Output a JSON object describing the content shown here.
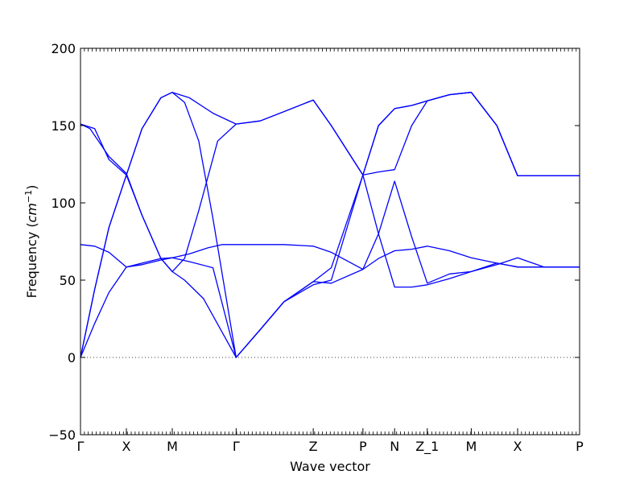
{
  "chart_data": {
    "type": "line",
    "xlabel": "Wave vector",
    "ylabel_text": "Frequency (",
    "ylabel_unit": "cm",
    "ylabel_exp": "−1",
    "ylabel_close": ")",
    "ylim": [
      -50,
      200
    ],
    "yticks": [
      -50,
      0,
      50,
      100,
      150,
      200
    ],
    "ytick_labels": [
      "−50",
      "0",
      "50",
      "100",
      "150",
      "200"
    ],
    "xlim": [
      0,
      10.55
    ],
    "xticks": [
      0,
      0.97,
      1.94,
      3.29,
      4.92,
      5.97,
      6.64,
      7.33,
      8.26,
      9.24,
      10.55
    ],
    "xtick_labels": [
      "Γ",
      "X",
      "M",
      "Γ",
      "Z",
      "P",
      "N",
      "Z_1",
      "M",
      "X",
      "P"
    ],
    "zero_line": true,
    "line_color": "#0000ff",
    "series": [
      {
        "x": [
          0,
          0.3,
          0.6,
          0.97,
          1.3,
          1.7,
          1.94,
          2.3,
          2.7,
          3.0,
          3.29,
          3.8,
          4.3,
          4.92,
          5.3,
          5.97,
          6.3,
          6.64,
          7.0,
          7.33,
          7.8,
          8.26,
          8.8,
          9.24,
          9.8,
          10.55
        ],
        "y": [
          73,
          72,
          68,
          58.5,
          61,
          64,
          64.5,
          67,
          71,
          73,
          73,
          73,
          73,
          72,
          68,
          57,
          64,
          69,
          70,
          72,
          69,
          64.5,
          61,
          58.5,
          58.5,
          58.5
        ]
      },
      {
        "x": [
          0,
          0.3,
          0.6,
          0.97,
          1.3,
          1.7,
          1.94,
          2.3,
          2.8,
          3.29,
          3.8,
          4.3,
          4.92,
          5.3,
          5.97,
          6.3,
          6.64,
          7.0,
          7.33,
          7.8,
          8.26,
          8.8,
          9.24,
          9.8,
          10.55
        ],
        "y": [
          0,
          22,
          42,
          58.5,
          60,
          63,
          64.5,
          62,
          58,
          0,
          18,
          36,
          49,
          58,
          118,
          150,
          161,
          163,
          166,
          170,
          171.5,
          150,
          117.5,
          117.5,
          117.5
        ]
      },
      {
        "x": [
          0,
          0.3,
          0.6,
          0.97,
          1.3,
          1.7,
          1.94,
          2.2,
          2.5,
          2.8,
          3.29,
          3.8,
          4.3,
          4.92,
          5.3,
          5.97,
          6.3,
          6.64,
          7.0,
          7.33,
          7.8,
          8.26,
          8.8,
          9.24,
          9.8,
          10.55
        ],
        "y": [
          0,
          44,
          84,
          118,
          148,
          168,
          171.5,
          165,
          140,
          90,
          0,
          18,
          36,
          47,
          50,
          118,
          150,
          161,
          163,
          166,
          170,
          171.5,
          150,
          117.5,
          117.5,
          117.5
        ]
      },
      {
        "x": [
          0,
          0.3,
          0.6,
          0.97,
          1.3,
          1.7,
          1.94,
          2.3,
          2.8,
          3.29,
          3.8,
          4.3,
          4.92,
          5.3,
          5.97,
          6.3,
          6.64,
          7.0,
          7.33,
          7.8,
          8.26,
          8.8,
          9.24,
          9.8,
          10.55
        ],
        "y": [
          0,
          44,
          84,
          118,
          148,
          168,
          171.5,
          168,
          158,
          151,
          153,
          159,
          166.5,
          150,
          118,
          80,
          45.5,
          45.5,
          47,
          51,
          55.5,
          60,
          64.5,
          58.5,
          58.5
        ]
      },
      {
        "x": [
          0,
          0.2,
          0.6,
          0.97,
          1.3,
          1.7,
          1.94,
          2.2,
          2.5,
          2.9,
          3.29,
          3.8,
          4.3,
          4.92,
          5.3,
          5.97,
          6.3,
          6.64,
          7.0,
          7.33,
          7.8,
          8.26,
          8.8,
          9.24,
          9.8,
          10.55
        ],
        "y": [
          151,
          148,
          130,
          119,
          92,
          64,
          55.5,
          64,
          95,
          140,
          151,
          153,
          159,
          166.5,
          150,
          118,
          120,
          121.5,
          150,
          166,
          170,
          171.5,
          150,
          117.5,
          117.5,
          117.5
        ]
      },
      {
        "x": [
          0,
          0.3,
          0.6,
          0.97,
          1.3,
          1.7,
          1.94,
          2.2,
          2.6,
          3.0,
          3.29,
          3.8,
          4.3,
          4.92,
          5.3,
          5.97,
          6.3,
          6.64,
          7.0,
          7.33,
          7.8,
          8.26,
          8.8,
          9.24,
          9.8,
          10.55
        ],
        "y": [
          151,
          148,
          128,
          118,
          92,
          64,
          55.5,
          50,
          38,
          16,
          0,
          18,
          36,
          49,
          48,
          57,
          80,
          114,
          78,
          48,
          54,
          55.5,
          61,
          58.5,
          58.5,
          58.5
        ]
      }
    ]
  }
}
